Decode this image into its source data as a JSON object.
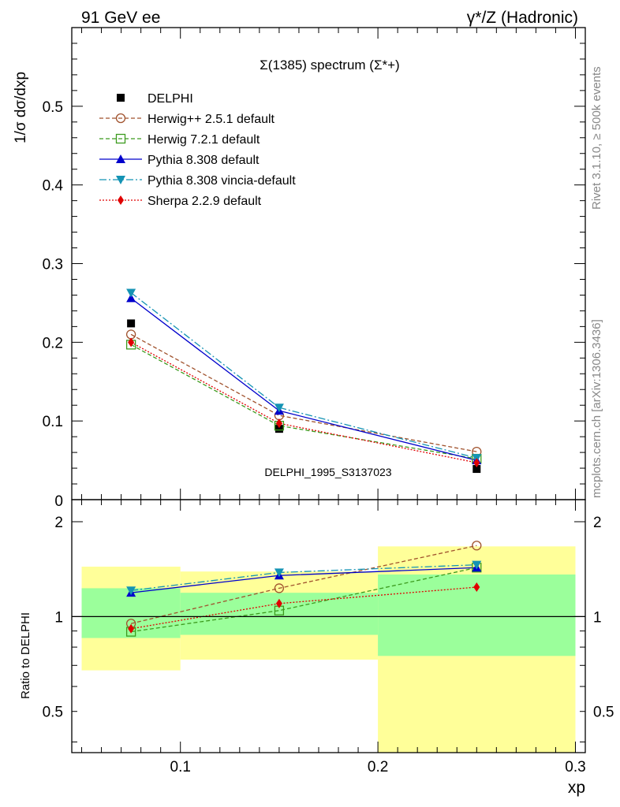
{
  "header": {
    "left": "91 GeV ee",
    "right": "γ*/Z (Hadronic)"
  },
  "side_labels": {
    "rivet": "Rivet 3.1.10, ≥ 500k events",
    "mcplots": "mcplots.cern.ch [arXiv:1306.3436]"
  },
  "chart_data": {
    "type": "line",
    "title": "Σ(1385) spectrum (Σ*+)",
    "watermark": "DELPHI_1995_S3137023",
    "xlabel": "xp",
    "ylabel": "1/σ dσ/dxp",
    "ratio_ylabel": "Ratio to DELPHI",
    "xlim": [
      0.045,
      0.305
    ],
    "ylim": [
      0,
      0.6
    ],
    "ratio_ylim": [
      0.37,
      2.35
    ],
    "x_ticks": [
      "0.1",
      "0.2",
      "0.3"
    ],
    "x_tick_values": [
      0.1,
      0.2,
      0.3
    ],
    "y_ticks": [
      "0.1",
      "0.2",
      "0.3",
      "0.4",
      "0.5"
    ],
    "y_tick_values": [
      0.1,
      0.2,
      0.3,
      0.4,
      0.5
    ],
    "y_zero_label": "0",
    "ratio_ticks": [
      "0.5",
      "1",
      "2"
    ],
    "ratio_tick_values": [
      0.5,
      1,
      2
    ],
    "x": [
      0.075,
      0.15,
      0.25
    ],
    "bins": [
      [
        0.05,
        0.1
      ],
      [
        0.1,
        0.2
      ],
      [
        0.2,
        0.3
      ]
    ],
    "data": {
      "name": "DELPHI",
      "values": [
        0.224,
        0.09,
        0.039
      ],
      "band_inner": [
        [
          0.855,
          1.23
        ],
        [
          0.875,
          1.19
        ],
        [
          0.75,
          1.36
        ]
      ],
      "band_outer": [
        [
          0.675,
          1.44
        ],
        [
          0.73,
          1.39
        ],
        [
          0.36,
          1.67
        ]
      ]
    },
    "series": [
      {
        "name": "Herwig++ 2.5.1 default",
        "color": "#a0522d",
        "marker": "open-circle",
        "dash": "5,3",
        "values": [
          0.21,
          0.107,
          0.061
        ],
        "ratio": [
          0.95,
          1.23,
          1.68
        ]
      },
      {
        "name": "Herwig 7.2.1 default",
        "color": "#3c9b1e",
        "marker": "open-square",
        "dash": "5,3",
        "values": [
          0.197,
          0.094,
          0.052
        ],
        "ratio": [
          0.895,
          1.045,
          1.43
        ]
      },
      {
        "name": "Pythia 8.308 default",
        "color": "#0000cc",
        "marker": "triangle-up",
        "dash": "",
        "values": [
          0.256,
          0.113,
          0.05
        ],
        "ratio": [
          1.19,
          1.35,
          1.43
        ]
      },
      {
        "name": "Pythia 8.308 vincia-default",
        "color": "#1493b4",
        "marker": "triangle-down",
        "dash": "9,3,2,3",
        "values": [
          0.263,
          0.117,
          0.053
        ],
        "ratio": [
          1.21,
          1.38,
          1.46
        ]
      },
      {
        "name": "Sherpa 2.2.9 default",
        "color": "#e00000",
        "marker": "diamond",
        "dash": "2,2",
        "values": [
          0.2,
          0.097,
          0.047
        ],
        "ratio": [
          0.915,
          1.1,
          1.24
        ]
      }
    ],
    "legend_position": "top-left",
    "colors": {
      "data": "#000000",
      "band_inner": "#9bff9b",
      "band_outer": "#ffff99",
      "watermark": "#888888"
    }
  }
}
